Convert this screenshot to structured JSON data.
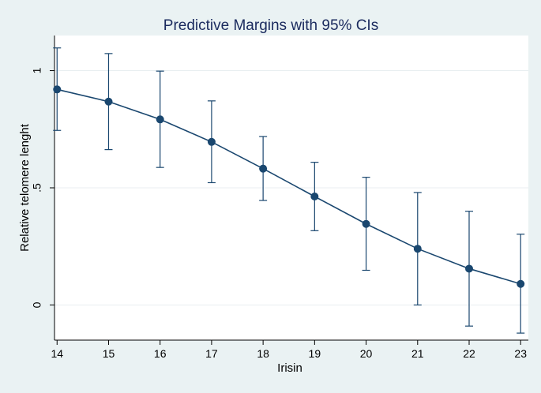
{
  "chart_data": {
    "type": "line",
    "title": "Predictive Margins with 95% CIs",
    "xlabel": "Irisin",
    "ylabel": "Relative telomere lenght",
    "x": [
      14,
      15,
      16,
      17,
      18,
      19,
      20,
      21,
      22,
      23
    ],
    "x_tick_labels": [
      "14",
      "15",
      "16",
      "17",
      "18",
      "19",
      "20",
      "21",
      "22",
      "23"
    ],
    "y_ticks": [
      0,
      0.5,
      1
    ],
    "y_tick_labels": [
      "0",
      ".5",
      "1"
    ],
    "ylim": [
      -0.15,
      1.15
    ],
    "xlim": [
      13.95,
      23.15
    ],
    "grid": true,
    "series": [
      {
        "name": "Predictive margin",
        "values": [
          0.92,
          0.868,
          0.792,
          0.696,
          0.582,
          0.463,
          0.346,
          0.24,
          0.155,
          0.09
        ],
        "ci_lower": [
          0.745,
          0.663,
          0.587,
          0.522,
          0.446,
          0.317,
          0.148,
          0.0,
          -0.09,
          -0.12
        ],
        "ci_upper": [
          1.097,
          1.073,
          0.998,
          0.871,
          0.719,
          0.609,
          0.545,
          0.48,
          0.4,
          0.302
        ]
      }
    ],
    "colors": {
      "background": "#eaf2f3",
      "plot_area": "#ffffff",
      "line": "#1a476f",
      "title": "#1a2a5e",
      "grid": "#e8eef0"
    }
  }
}
